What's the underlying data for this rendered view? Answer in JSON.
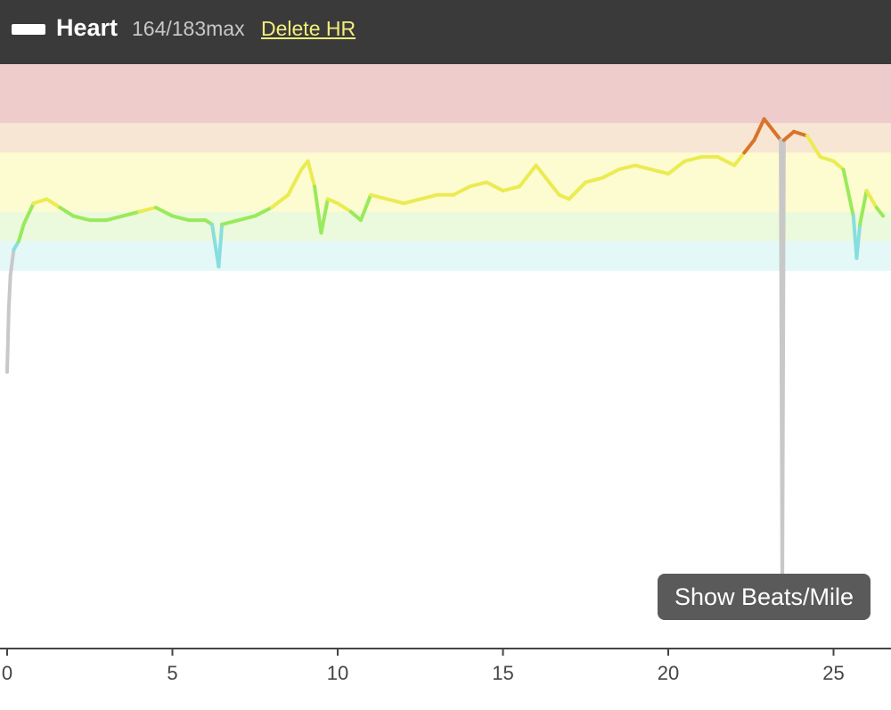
{
  "header": {
    "title": "Heart",
    "max_info": "164/183max",
    "delete_label": "Delete HR"
  },
  "show_button_label": "Show Beats/Mile",
  "colors": {
    "header_bg": "#3a3a3a",
    "link": "#f2ee7c",
    "zone5": "#efcccc",
    "zone4": "#f8e6d4",
    "zone3": "#fdfbd0",
    "zone2": "#ebf9dc",
    "zone1": "#e4f8f8",
    "line_z1": "#88dede",
    "line_z2": "#99ea5a",
    "line_z3": "#ebeb52",
    "line_z4": "#d8742a",
    "line_z5": "#cc2222",
    "below_zones": "#c8c8c8"
  },
  "chart_data": {
    "type": "line",
    "title": "",
    "xlabel": "",
    "ylabel": "",
    "xlim": [
      0,
      26.5
    ],
    "x_ticks": [
      0,
      5,
      10,
      15,
      20,
      25
    ],
    "x_tick_labels": [
      "0",
      "5",
      "10",
      "15",
      "20",
      "25"
    ],
    "ylim": [
      76,
      168
    ],
    "zones": [
      {
        "name": "zone5",
        "from": 154,
        "to": 168
      },
      {
        "name": "zone4",
        "from": 147,
        "to": 154
      },
      {
        "name": "zone3",
        "from": 133,
        "to": 147
      },
      {
        "name": "zone2",
        "from": 126,
        "to": 133
      },
      {
        "name": "zone1",
        "from": 119,
        "to": 126
      }
    ],
    "series": [
      {
        "points": [
          [
            0.0,
            95
          ],
          [
            0.05,
            110
          ],
          [
            0.1,
            118
          ],
          [
            0.2,
            124
          ],
          [
            0.35,
            126
          ],
          [
            0.5,
            130
          ],
          [
            0.8,
            135
          ],
          [
            1.2,
            136
          ],
          [
            1.6,
            134
          ],
          [
            2.0,
            132
          ],
          [
            2.5,
            131
          ],
          [
            3.0,
            131
          ],
          [
            3.5,
            132
          ],
          [
            4.0,
            133
          ],
          [
            4.5,
            134
          ],
          [
            5.0,
            132
          ],
          [
            5.5,
            131
          ],
          [
            6.0,
            131
          ],
          [
            6.2,
            130
          ],
          [
            6.4,
            120
          ],
          [
            6.5,
            130
          ],
          [
            7.0,
            131
          ],
          [
            7.5,
            132
          ],
          [
            8.0,
            134
          ],
          [
            8.5,
            137
          ],
          [
            8.9,
            143
          ],
          [
            9.1,
            145
          ],
          [
            9.3,
            139
          ],
          [
            9.5,
            128
          ],
          [
            9.7,
            136
          ],
          [
            10.0,
            135
          ],
          [
            10.4,
            133
          ],
          [
            10.7,
            131
          ],
          [
            11.0,
            137
          ],
          [
            11.5,
            136
          ],
          [
            12.0,
            135
          ],
          [
            12.5,
            136
          ],
          [
            13.0,
            137
          ],
          [
            13.5,
            137
          ],
          [
            14.0,
            139
          ],
          [
            14.5,
            140
          ],
          [
            15.0,
            138
          ],
          [
            15.5,
            139
          ],
          [
            16.0,
            144
          ],
          [
            16.3,
            141
          ],
          [
            16.7,
            137
          ],
          [
            17.0,
            136
          ],
          [
            17.5,
            140
          ],
          [
            18.0,
            141
          ],
          [
            18.5,
            143
          ],
          [
            19.0,
            144
          ],
          [
            19.5,
            143
          ],
          [
            20.0,
            142
          ],
          [
            20.5,
            145
          ],
          [
            21.0,
            146
          ],
          [
            21.5,
            146
          ],
          [
            22.0,
            144
          ],
          [
            22.3,
            147
          ],
          [
            22.6,
            150
          ],
          [
            22.9,
            155
          ],
          [
            23.2,
            152
          ],
          [
            23.4,
            150
          ],
          [
            23.45,
            40
          ],
          [
            23.5,
            150
          ],
          [
            23.8,
            152
          ],
          [
            24.2,
            151
          ],
          [
            24.6,
            146
          ],
          [
            25.0,
            145
          ],
          [
            25.3,
            143
          ],
          [
            25.6,
            132
          ],
          [
            25.7,
            122
          ],
          [
            25.8,
            130
          ],
          [
            26.0,
            138
          ],
          [
            26.3,
            134
          ],
          [
            26.5,
            132
          ]
        ]
      }
    ]
  }
}
